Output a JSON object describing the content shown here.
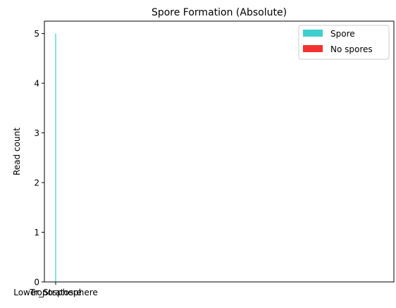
{
  "chart_data": {
    "type": "bar",
    "title": "Spore Formation (Absolute)",
    "xlabel": "",
    "ylabel": "Read count",
    "ylim": [
      0,
      5.25
    ],
    "yticks": [
      0,
      1,
      2,
      3,
      4,
      5
    ],
    "categories": [
      "Lower_Stratosphere",
      "Troposphere"
    ],
    "series": [
      {
        "name": "Spore",
        "color": "#3ECFCF",
        "values": [
          5,
          0
        ]
      },
      {
        "name": "No spores",
        "color": "#F53030",
        "values": [
          0,
          0
        ]
      }
    ],
    "stacked": true,
    "grid": false,
    "legend_position": "top-right"
  }
}
